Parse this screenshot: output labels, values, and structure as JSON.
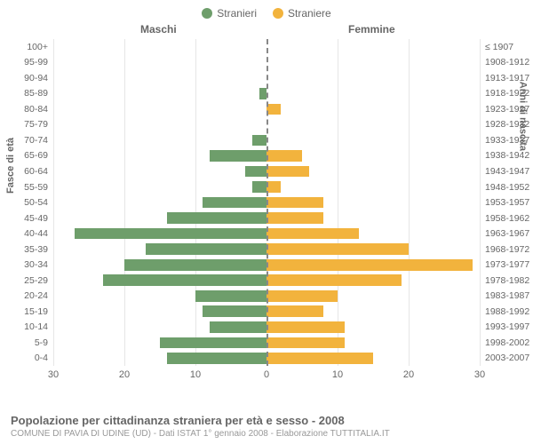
{
  "legend": {
    "male": {
      "label": "Stranieri",
      "color": "#6e9e6b"
    },
    "female": {
      "label": "Straniere",
      "color": "#f2b33d"
    }
  },
  "headers": {
    "left": "Maschi",
    "right": "Femmine"
  },
  "y_axis_left_title": "Fasce di età",
  "y_axis_right_title": "Anni di nascita",
  "chart": {
    "type": "population-pyramid",
    "max_value": 30,
    "x_ticks": [
      30,
      20,
      10,
      0,
      10,
      20,
      30
    ],
    "background_color": "#ffffff",
    "grid_color": "#e6e6e6",
    "center_line_color": "#888888",
    "bar_height_pct": 72,
    "rows": [
      {
        "age": "100+",
        "birth": "≤ 1907",
        "m": 0,
        "f": 0
      },
      {
        "age": "95-99",
        "birth": "1908-1912",
        "m": 0,
        "f": 0
      },
      {
        "age": "90-94",
        "birth": "1913-1917",
        "m": 0,
        "f": 0
      },
      {
        "age": "85-89",
        "birth": "1918-1922",
        "m": 1,
        "f": 0
      },
      {
        "age": "80-84",
        "birth": "1923-1927",
        "m": 0,
        "f": 2
      },
      {
        "age": "75-79",
        "birth": "1928-1932",
        "m": 0,
        "f": 0
      },
      {
        "age": "70-74",
        "birth": "1933-1937",
        "m": 2,
        "f": 0
      },
      {
        "age": "65-69",
        "birth": "1938-1942",
        "m": 8,
        "f": 5
      },
      {
        "age": "60-64",
        "birth": "1943-1947",
        "m": 3,
        "f": 6
      },
      {
        "age": "55-59",
        "birth": "1948-1952",
        "m": 2,
        "f": 2
      },
      {
        "age": "50-54",
        "birth": "1953-1957",
        "m": 9,
        "f": 8
      },
      {
        "age": "45-49",
        "birth": "1958-1962",
        "m": 14,
        "f": 8
      },
      {
        "age": "40-44",
        "birth": "1963-1967",
        "m": 27,
        "f": 13
      },
      {
        "age": "35-39",
        "birth": "1968-1972",
        "m": 17,
        "f": 20
      },
      {
        "age": "30-34",
        "birth": "1973-1977",
        "m": 20,
        "f": 29
      },
      {
        "age": "25-29",
        "birth": "1978-1982",
        "m": 23,
        "f": 19
      },
      {
        "age": "20-24",
        "birth": "1983-1987",
        "m": 10,
        "f": 10
      },
      {
        "age": "15-19",
        "birth": "1988-1992",
        "m": 9,
        "f": 8
      },
      {
        "age": "10-14",
        "birth": "1993-1997",
        "m": 8,
        "f": 11
      },
      {
        "age": "5-9",
        "birth": "1998-2002",
        "m": 15,
        "f": 11
      },
      {
        "age": "0-4",
        "birth": "2003-2007",
        "m": 14,
        "f": 15
      }
    ]
  },
  "footer": {
    "title": "Popolazione per cittadinanza straniera per età e sesso - 2008",
    "subtitle": "COMUNE DI PAVIA DI UDINE (UD) - Dati ISTAT 1° gennaio 2008 - Elaborazione TUTTITALIA.IT"
  }
}
